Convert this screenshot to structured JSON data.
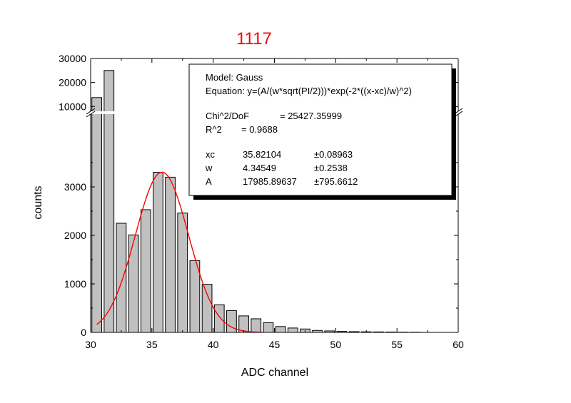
{
  "chart_data": {
    "type": "bar",
    "title": "1117",
    "title_color": "#ff0000",
    "xlabel": "ADC channel",
    "ylabel": "counts",
    "xlim": [
      30,
      60
    ],
    "xticks": [
      "30",
      "35",
      "40",
      "45",
      "50",
      "55",
      "60"
    ],
    "y_axis_break": {
      "lower_range": [
        0,
        4500
      ],
      "upper_range": [
        8000,
        30000
      ],
      "lower_ticks": [
        "0",
        "1000",
        "2000",
        "3000"
      ],
      "upper_ticks": [
        "10000",
        "20000",
        "30000"
      ]
    },
    "bar_color": "#c0c0c0",
    "bars": [
      {
        "x": 30.5,
        "y": 13700
      },
      {
        "x": 31.5,
        "y": 25000
      },
      {
        "x": 32.5,
        "y": 2250
      },
      {
        "x": 33.5,
        "y": 2010
      },
      {
        "x": 34.5,
        "y": 2530
      },
      {
        "x": 35.5,
        "y": 3300
      },
      {
        "x": 36.5,
        "y": 3200
      },
      {
        "x": 37.5,
        "y": 2460
      },
      {
        "x": 38.5,
        "y": 1480
      },
      {
        "x": 39.5,
        "y": 990
      },
      {
        "x": 40.5,
        "y": 570
      },
      {
        "x": 41.5,
        "y": 450
      },
      {
        "x": 42.5,
        "y": 340
      },
      {
        "x": 43.5,
        "y": 280
      },
      {
        "x": 44.5,
        "y": 200
      },
      {
        "x": 45.5,
        "y": 120
      },
      {
        "x": 46.5,
        "y": 90
      },
      {
        "x": 47.5,
        "y": 70
      },
      {
        "x": 48.5,
        "y": 40
      },
      {
        "x": 49.5,
        "y": 30
      },
      {
        "x": 50.5,
        "y": 20
      },
      {
        "x": 51.5,
        "y": 15
      },
      {
        "x": 52.5,
        "y": 12
      },
      {
        "x": 53.5,
        "y": 10
      },
      {
        "x": 54.5,
        "y": 8
      },
      {
        "x": 55.5,
        "y": 5
      },
      {
        "x": 56.5,
        "y": 4
      }
    ],
    "fit": {
      "model": "Gauss",
      "color": "#ff0000",
      "x_range": [
        30.5,
        44
      ],
      "params": {
        "xc": 35.82104,
        "w": 4.34549,
        "A": 17985.89637
      }
    },
    "stats_box": {
      "model_line": "Model: Gauss",
      "equation_line": "Equation: y=(A/(w*sqrt(PI/2)))*exp(-2*((x-xc)/w)^2)",
      "chi_label": "Chi^2/DoF",
      "chi_value": "= 25427.35999",
      "r2_label": "R^2",
      "r2_value": "=  0.9688",
      "params": [
        {
          "name": "xc",
          "value": "35.82104",
          "err": "±0.08963"
        },
        {
          "name": "w",
          "value": "4.34549",
          "err": "±0.2538"
        },
        {
          "name": "A",
          "value": "17985.89637",
          "err": "±795.6612"
        }
      ]
    },
    "grid": false
  }
}
